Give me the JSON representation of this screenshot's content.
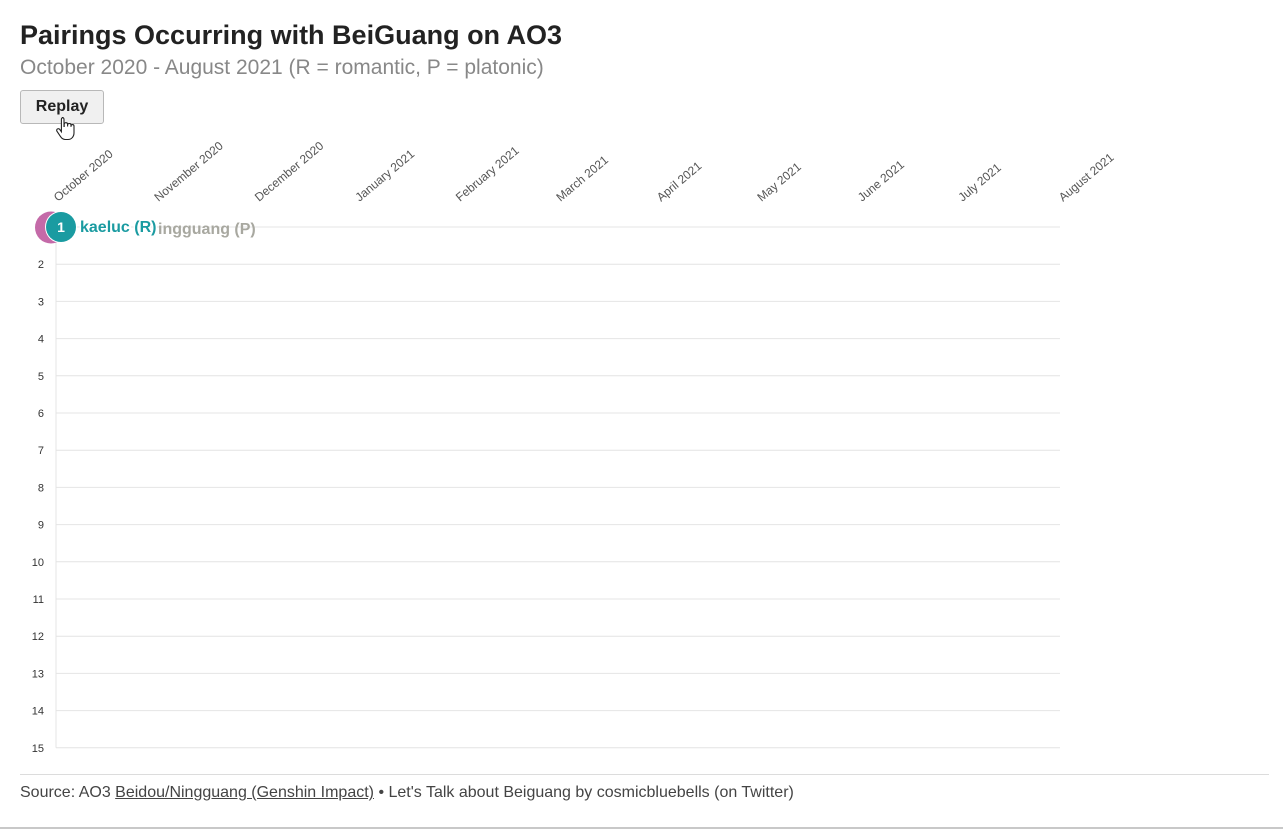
{
  "title": "Pairings Occurring with BeiGuang on AO3",
  "subtitle": "October 2020 - August 2021 (R = romantic, P = platonic)",
  "replay_label": "Replay",
  "source": {
    "prefix": "Source: AO3",
    "link": "Beidou/Ningguang (Genshin Impact)",
    "suffix": "• Let's Talk about Beiguang by cosmicbluebells (on Twitter)"
  },
  "colors": {
    "teal": "#1a9ba1",
    "pink": "#c46aa8",
    "grey_label": "#a8a8a0",
    "grid": "#e4e4e4"
  },
  "chart_data": {
    "type": "bump",
    "x_labels": [
      "October 2020",
      "November 2020",
      "December 2020",
      "January 2021",
      "February 2021",
      "March 2021",
      "April 2021",
      "May 2021",
      "June 2021",
      "July 2021",
      "August 2021"
    ],
    "ranks": [
      "1",
      "2",
      "3",
      "4",
      "5",
      "6",
      "7",
      "8",
      "9",
      "10",
      "11",
      "12",
      "13",
      "14",
      "15"
    ],
    "series": [
      {
        "name": "kaeluc (R)",
        "rank_label": "1",
        "ranks": [
          1
        ],
        "color": "#1a9ba1"
      },
      {
        "name": "ningguang (P)",
        "ranks": [
          1
        ],
        "color": "#c46aa8"
      }
    ],
    "visible_label_ningguang": "ingguang (P)"
  }
}
